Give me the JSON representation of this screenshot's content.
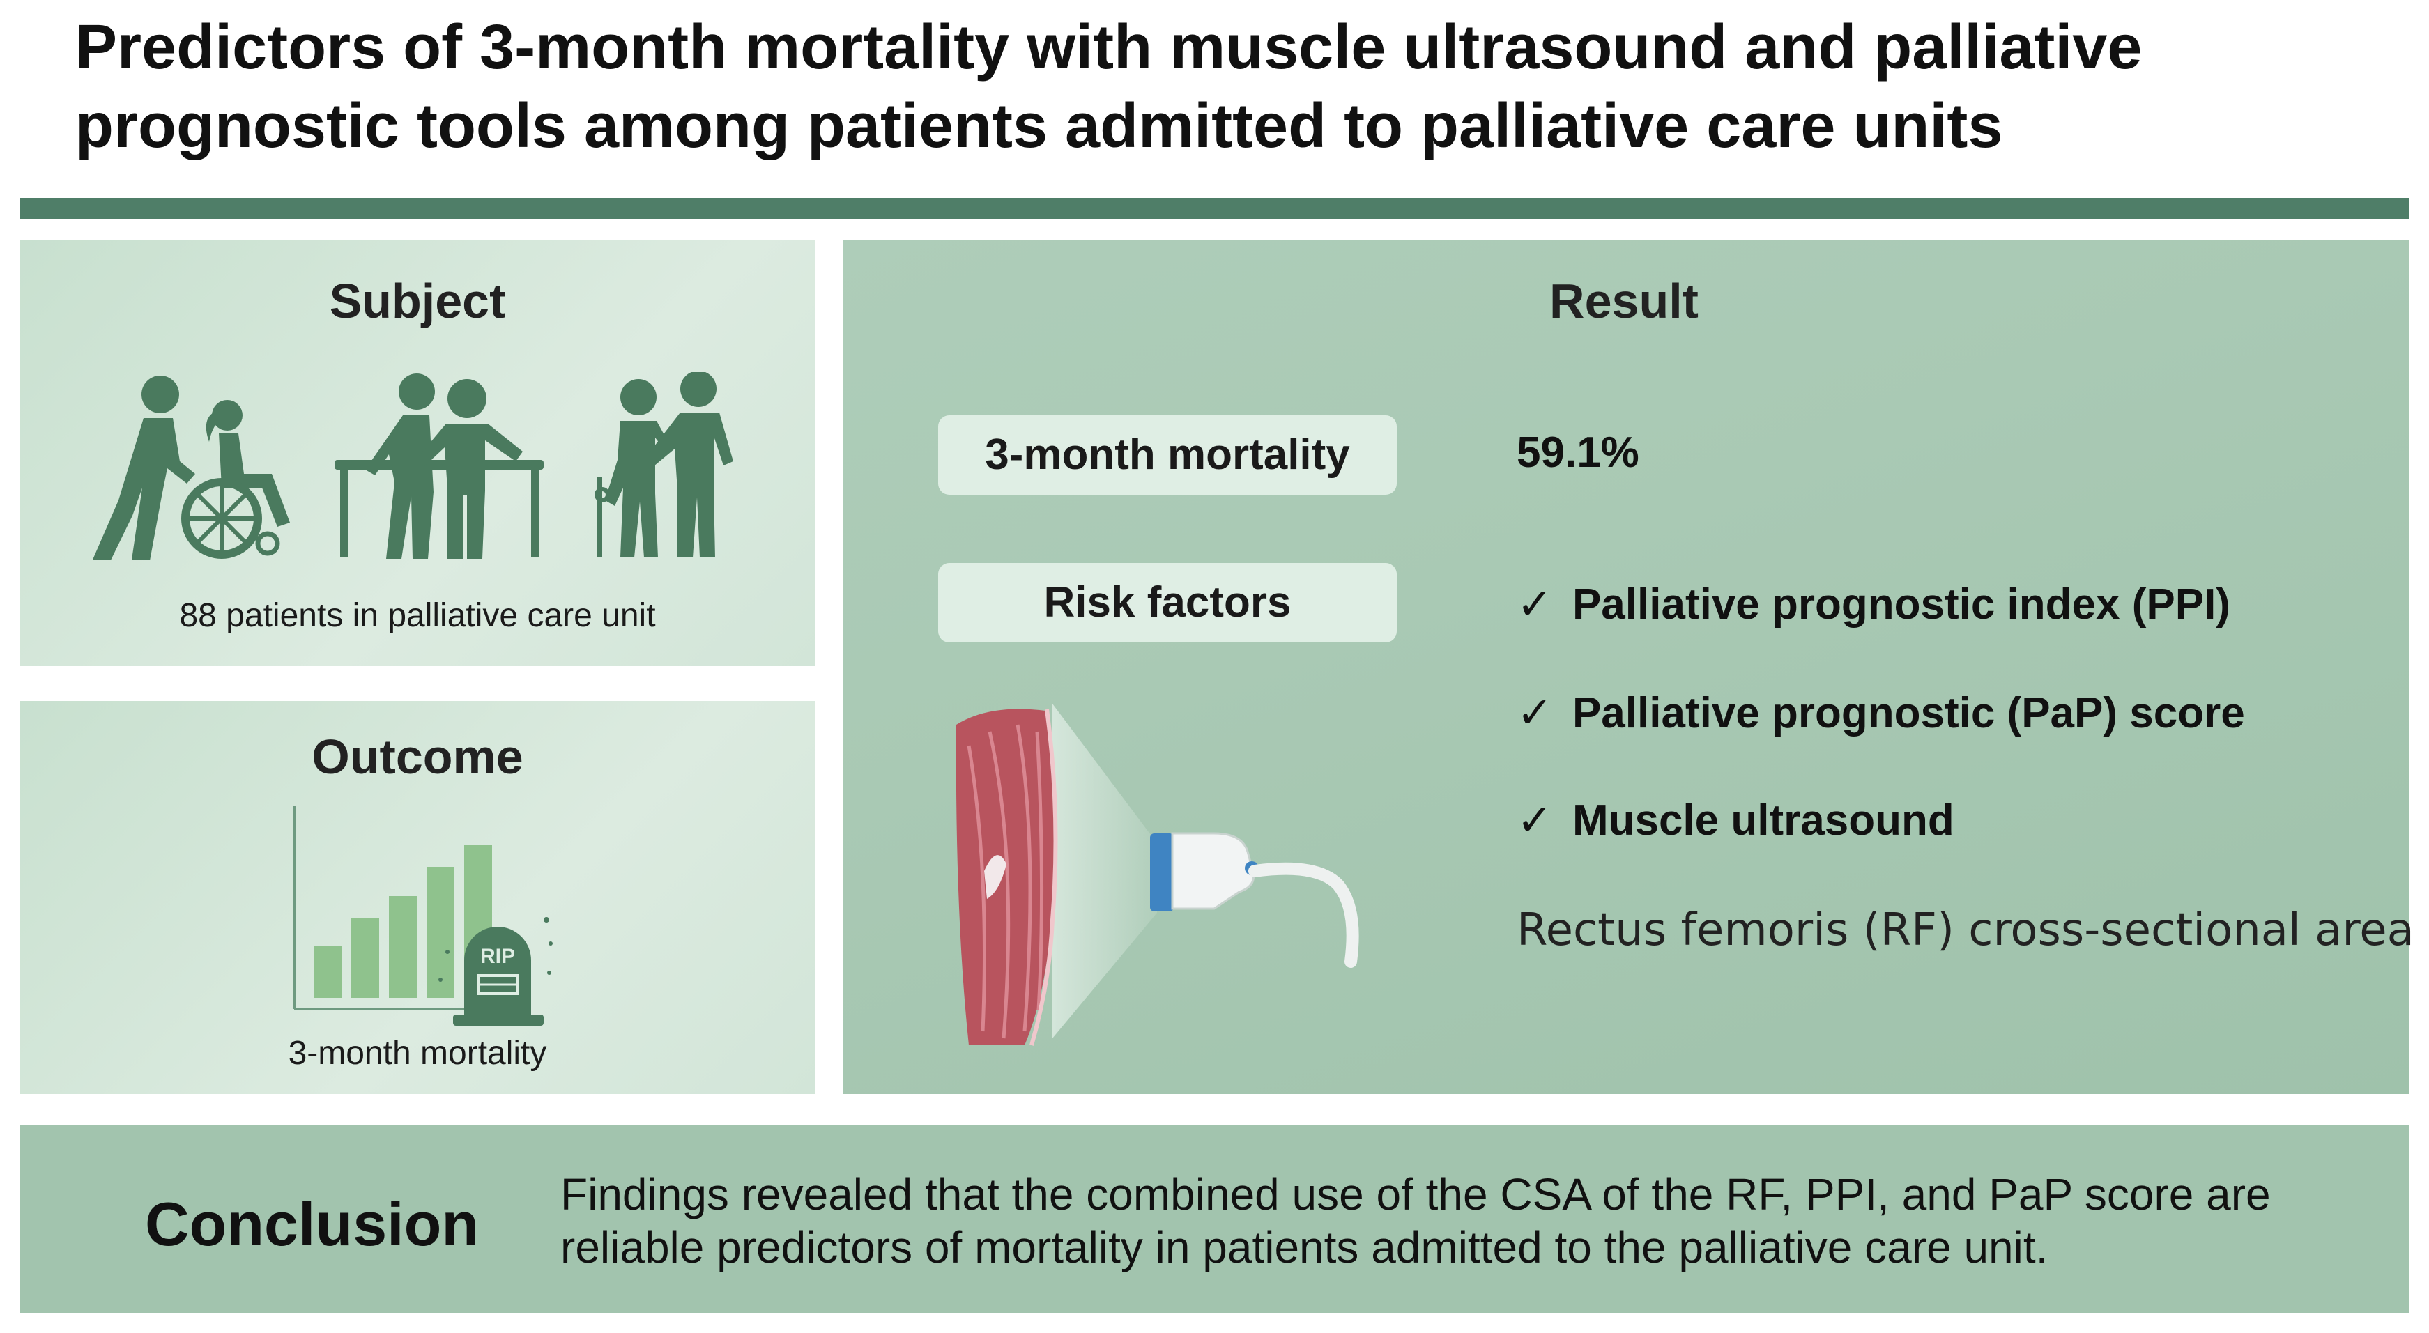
{
  "title": "Predictors of 3-month mortality with muscle ultrasound and palliative prognostic tools among patients admitted to palliative care units",
  "subject": {
    "heading": "Subject",
    "caption": "88 patients in palliative care unit"
  },
  "outcome": {
    "heading": "Outcome",
    "caption": "3-month mortality",
    "tombstone_text": "RIP"
  },
  "result": {
    "heading": "Result",
    "mortality_label": "3-month mortality",
    "mortality_value": "59.1%",
    "risk_label": "Risk factors",
    "check_mark": "✓",
    "risk_factors": [
      "Palliative prognostic index (PPI)",
      "Palliative prognostic (PaP) score",
      "Muscle ultrasound"
    ],
    "muscle_note": "Rectus femoris (RF) cross-sectional area"
  },
  "conclusion": {
    "label": "Conclusion",
    "text": "Findings revealed that the combined use of the CSA of the RF, PPI, and PaP score are reliable predictors of mortality in patients admitted to the palliative care unit."
  },
  "colors": {
    "accent": "#4f7e68",
    "icon": "#4a7a5e",
    "bar": "#8fc28d"
  }
}
